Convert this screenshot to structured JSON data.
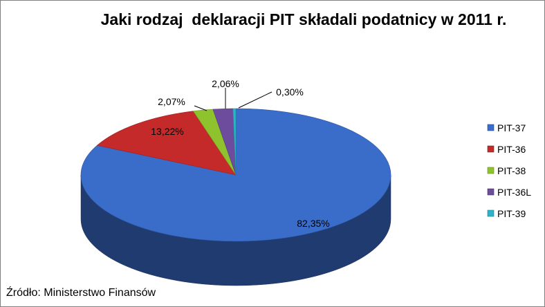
{
  "chart_data": {
    "type": "pie",
    "title": "Jaki rodzaj  deklaracji PIT składali podatnicy w 2011 r.",
    "categories": [
      "PIT-37",
      "PIT-36",
      "PIT-38",
      "PIT-36L",
      "PIT-39"
    ],
    "values": [
      82.35,
      13.22,
      2.07,
      2.06,
      0.3
    ],
    "data_labels": [
      "82,35%",
      "13,22%",
      "2,07%",
      "2,06%",
      "0,30%"
    ],
    "colors": [
      "#3a6cc9",
      "#c42a2a",
      "#8fc32d",
      "#6d4c9e",
      "#2bb3c8"
    ],
    "legend_placement": "right",
    "style": "3d"
  },
  "source": "Źródło: Ministerstwo Finansów"
}
